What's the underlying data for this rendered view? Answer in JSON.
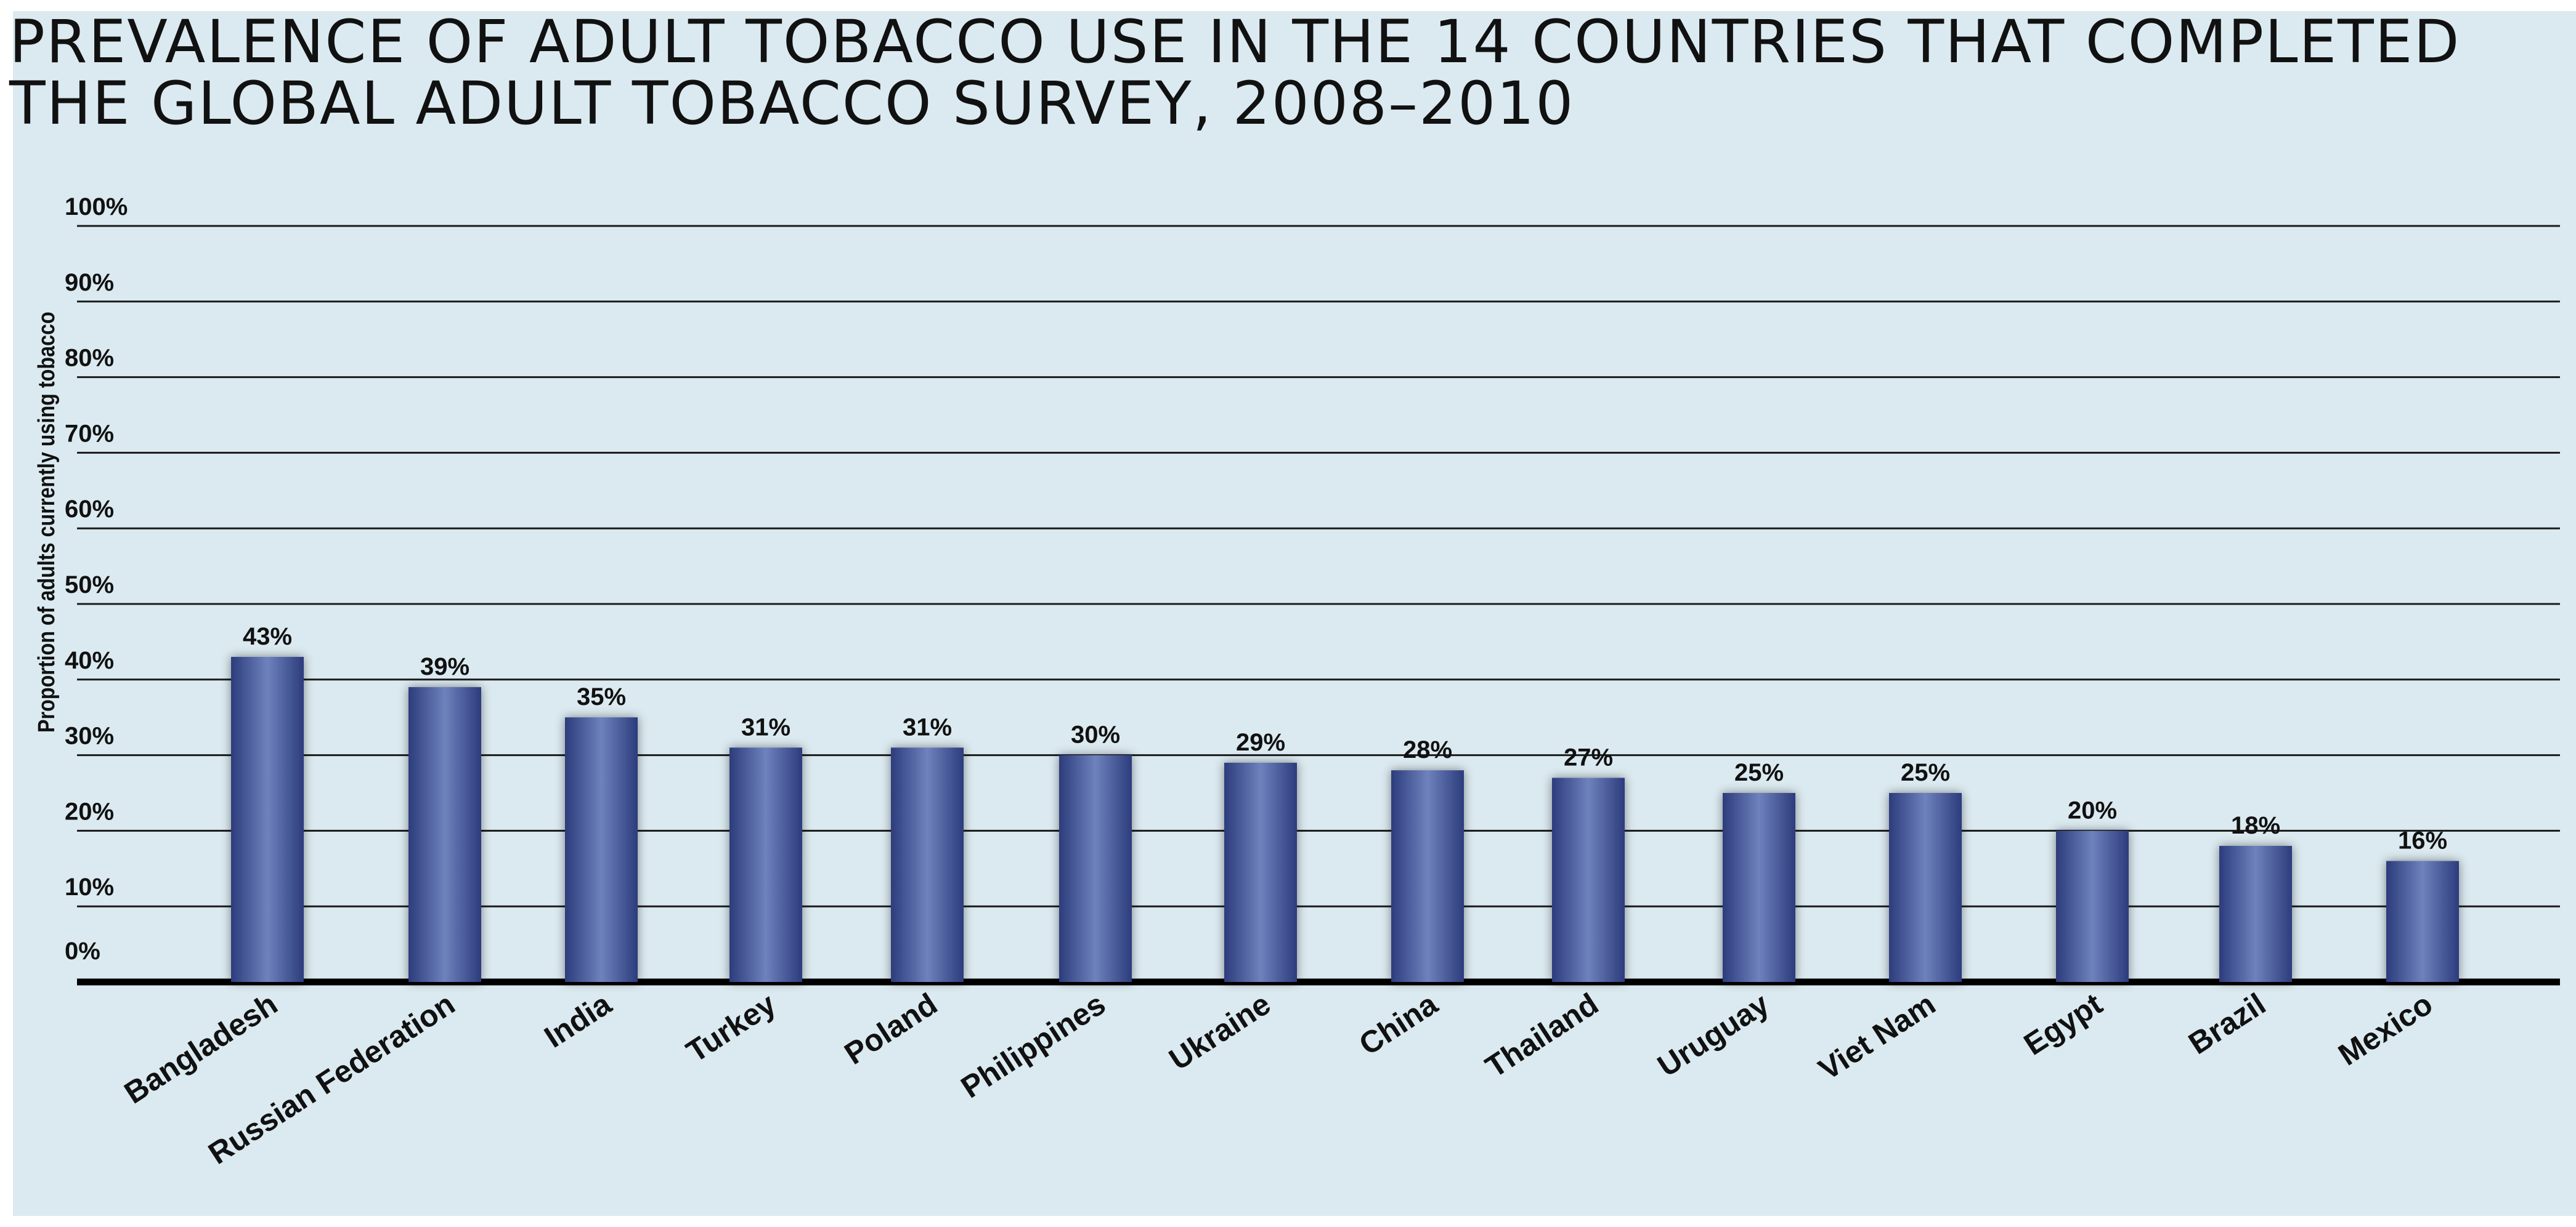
{
  "chart_data": {
    "type": "bar",
    "title_lines": [
      "PREVALENCE OF ADULT TOBACCO USE IN THE 14 COUNTRIES THAT COMPLETED",
      "THE GLOBAL ADULT TOBACCO SURVEY, 2008–2010"
    ],
    "xlabel": "",
    "ylabel": "Proportion of adults currently using tobacco",
    "ylim": [
      0,
      100
    ],
    "yticks": [
      0,
      10,
      20,
      30,
      40,
      50,
      60,
      70,
      80,
      90,
      100
    ],
    "ytick_labels": [
      "0%",
      "10%",
      "20%",
      "30%",
      "40%",
      "50%",
      "60%",
      "70%",
      "80%",
      "90%",
      "100%"
    ],
    "grid": true,
    "legend": "none",
    "categories": [
      "Bangladesh",
      "Russian Federation",
      "India",
      "Turkey",
      "Poland",
      "Philippines",
      "Ukraine",
      "China",
      "Thailand",
      "Uruguay",
      "Viet Nam",
      "Egypt",
      "Brazil",
      "Mexico"
    ],
    "values": [
      43,
      39,
      35,
      31,
      31,
      30,
      29,
      28,
      27,
      25,
      25,
      20,
      18,
      16
    ],
    "value_labels": [
      "43%",
      "39%",
      "35%",
      "31%",
      "31%",
      "30%",
      "29%",
      "28%",
      "27%",
      "25%",
      "25%",
      "20%",
      "18%",
      "16%"
    ],
    "bar_color": "#2c3c7c",
    "bar_highlight": "#6e82bd",
    "background_color": "#dbeaf0"
  }
}
